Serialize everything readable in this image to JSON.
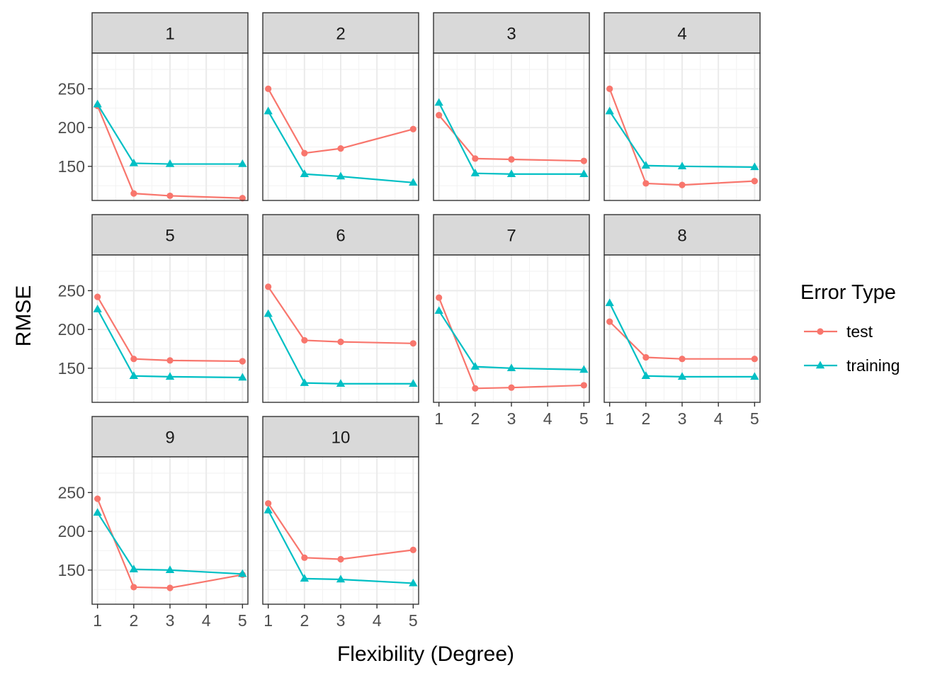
{
  "chart_data": {
    "type": "line",
    "facet_type": "wrap",
    "facets": [
      "1",
      "2",
      "3",
      "4",
      "5",
      "6",
      "7",
      "8",
      "9",
      "10"
    ],
    "x": [
      1,
      2,
      3,
      4,
      5
    ],
    "x_ticks": [
      "1",
      "2",
      "3",
      "4",
      "5"
    ],
    "y_ticks": [
      "150",
      "200",
      "250"
    ],
    "xlim": [
      0.85,
      5.15
    ],
    "ylim": [
      106,
      296
    ],
    "xlabel": "Flexibility (Degree)",
    "ylabel": "RMSE",
    "legend": {
      "title": "Error Type",
      "position": "right",
      "items": [
        "test",
        "training"
      ]
    },
    "grid": true,
    "theme": "bw",
    "series": [
      {
        "name": "test",
        "marker": "circle",
        "color": "#F8766D",
        "panels": [
          [
            1,
            228,
            115,
            112,
            109
          ],
          [
            2,
            250,
            167,
            173,
            198
          ],
          [
            3,
            216,
            160,
            159,
            157
          ],
          [
            4,
            250,
            128,
            126,
            131
          ],
          [
            5,
            242,
            162,
            160,
            159
          ],
          [
            6,
            255,
            186,
            184,
            182
          ],
          [
            7,
            241,
            124,
            125,
            128
          ],
          [
            8,
            210,
            164,
            162,
            162
          ],
          [
            9,
            242,
            128,
            127,
            144
          ],
          [
            10,
            236,
            166,
            164,
            176
          ]
        ]
      },
      {
        "name": "training",
        "marker": "triangle",
        "color": "#00BFC4",
        "panels": [
          [
            1,
            230,
            154,
            153,
            153
          ],
          [
            2,
            221,
            140,
            137,
            129
          ],
          [
            3,
            232,
            141,
            140,
            140
          ],
          [
            4,
            221,
            151,
            150,
            149
          ],
          [
            5,
            226,
            140,
            139,
            138
          ],
          [
            6,
            220,
            131,
            130,
            130
          ],
          [
            7,
            224,
            152,
            150,
            148
          ],
          [
            8,
            234,
            140,
            139,
            139
          ],
          [
            9,
            224,
            151,
            150,
            145
          ],
          [
            10,
            227,
            139,
            138,
            133
          ]
        ]
      }
    ]
  }
}
